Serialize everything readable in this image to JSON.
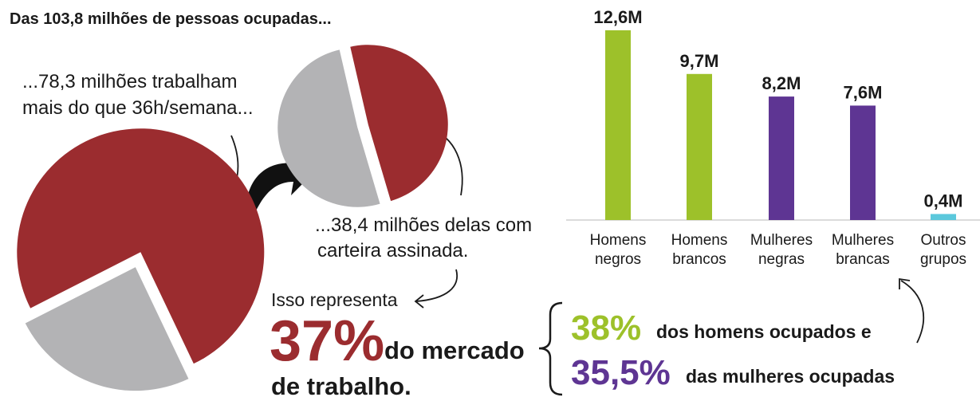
{
  "title": "Das 103,8 milhões de pessoas ocupadas...",
  "annotations": {
    "hours": [
      "...78,3 milhões trabalham",
      "mais do que 36h/semana..."
    ],
    "formal": [
      "...38,4 milhões delas com",
      "carteira assinada."
    ],
    "represents": "Isso representa",
    "share": "37%",
    "share_text": [
      "do mercado",
      "de trabalho."
    ],
    "men_share": "38%",
    "men_text": "dos homens ocupados e",
    "women_share": "35,5%",
    "women_text": "das mulheres ocupadas"
  },
  "chart_data": [
    {
      "type": "pie",
      "values": [
        78.3,
        25.5
      ],
      "colors": [
        "#9b2c2f",
        "#b3b3b5"
      ]
    },
    {
      "type": "pie",
      "values": [
        38.4,
        39.9
      ],
      "colors": [
        "#9b2c2f",
        "#b3b3b5"
      ]
    },
    {
      "type": "bar",
      "categories": [
        "Homens negros",
        "Homens brancos",
        "Mulheres negras",
        "Mulheres brancas",
        "Outros grupos"
      ],
      "values": [
        12.6,
        9.7,
        8.2,
        7.6,
        0.4
      ],
      "value_labels": [
        "12,6M",
        "9,7M",
        "8,2M",
        "7,6M",
        "0,4M"
      ],
      "colors": [
        "#9dc12a",
        "#9dc12a",
        "#5e3593",
        "#5e3593",
        "#5bc8dc"
      ]
    }
  ]
}
